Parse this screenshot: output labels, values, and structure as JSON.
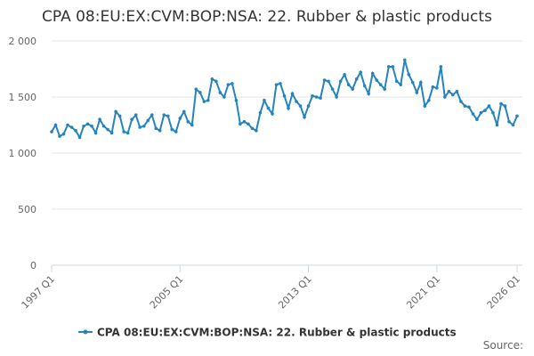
{
  "chart_data": {
    "type": "line",
    "title": "CPA 08:EU:EX:CVM:BOP:NSA: 22. Rubber & plastic products",
    "source": "Source:",
    "categories": [
      "1997 Q1",
      null,
      null,
      null,
      null,
      null,
      null,
      null,
      null,
      null,
      null,
      null,
      null,
      null,
      null,
      null,
      null,
      null,
      null,
      null,
      null,
      null,
      null,
      null,
      null,
      null,
      null,
      null,
      null,
      null,
      null,
      null,
      "2005 Q1",
      null,
      null,
      null,
      null,
      null,
      null,
      null,
      null,
      null,
      null,
      null,
      null,
      null,
      null,
      null,
      null,
      null,
      null,
      null,
      null,
      null,
      null,
      null,
      null,
      null,
      null,
      null,
      null,
      null,
      null,
      null,
      "2013 Q1",
      null,
      null,
      null,
      null,
      null,
      null,
      null,
      null,
      null,
      null,
      null,
      null,
      null,
      null,
      null,
      null,
      null,
      null,
      null,
      null,
      null,
      null,
      null,
      null,
      null,
      null,
      null,
      null,
      null,
      null,
      null,
      "2021 Q1",
      null,
      null,
      null,
      null,
      null,
      null,
      null,
      null,
      null,
      null,
      null,
      null,
      null,
      null,
      null,
      null,
      null,
      null,
      null,
      "2026 Q1"
    ],
    "series": [
      {
        "name": "CPA 08:EU:EX:CVM:BOP:NSA: 22. Rubber & plastic products",
        "color": "#2584bd",
        "values": [
          1190,
          1250,
          1150,
          1170,
          1250,
          1230,
          1200,
          1140,
          1240,
          1260,
          1240,
          1180,
          1300,
          1240,
          1210,
          1180,
          1370,
          1330,
          1190,
          1180,
          1300,
          1340,
          1230,
          1240,
          1290,
          1340,
          1220,
          1200,
          1340,
          1330,
          1210,
          1190,
          1310,
          1370,
          1280,
          1250,
          1570,
          1540,
          1460,
          1470,
          1660,
          1640,
          1540,
          1500,
          1610,
          1620,
          1470,
          1260,
          1280,
          1260,
          1220,
          1200,
          1360,
          1470,
          1400,
          1350,
          1610,
          1620,
          1510,
          1400,
          1530,
          1460,
          1420,
          1320,
          1420,
          1510,
          1500,
          1490,
          1650,
          1640,
          1570,
          1500,
          1640,
          1700,
          1610,
          1570,
          1660,
          1720,
          1600,
          1530,
          1710,
          1650,
          1610,
          1570,
          1770,
          1770,
          1640,
          1610,
          1830,
          1700,
          1630,
          1540,
          1630,
          1420,
          1470,
          1590,
          1580,
          1770,
          1500,
          1550,
          1520,
          1550,
          1460,
          1420,
          1410,
          1350,
          1300,
          1360,
          1380,
          1420,
          1360,
          1250,
          1440,
          1420,
          1280,
          1250,
          1330
        ]
      }
    ],
    "ylim": [
      0,
      2000
    ],
    "yticks": [
      0,
      500,
      {
        "value": 1000,
        "label": "1 000"
      },
      {
        "value": 1500,
        "label": "1 500"
      },
      {
        "value": 2000,
        "label": "2 000"
      }
    ],
    "grid": true,
    "legend": "bottom"
  }
}
